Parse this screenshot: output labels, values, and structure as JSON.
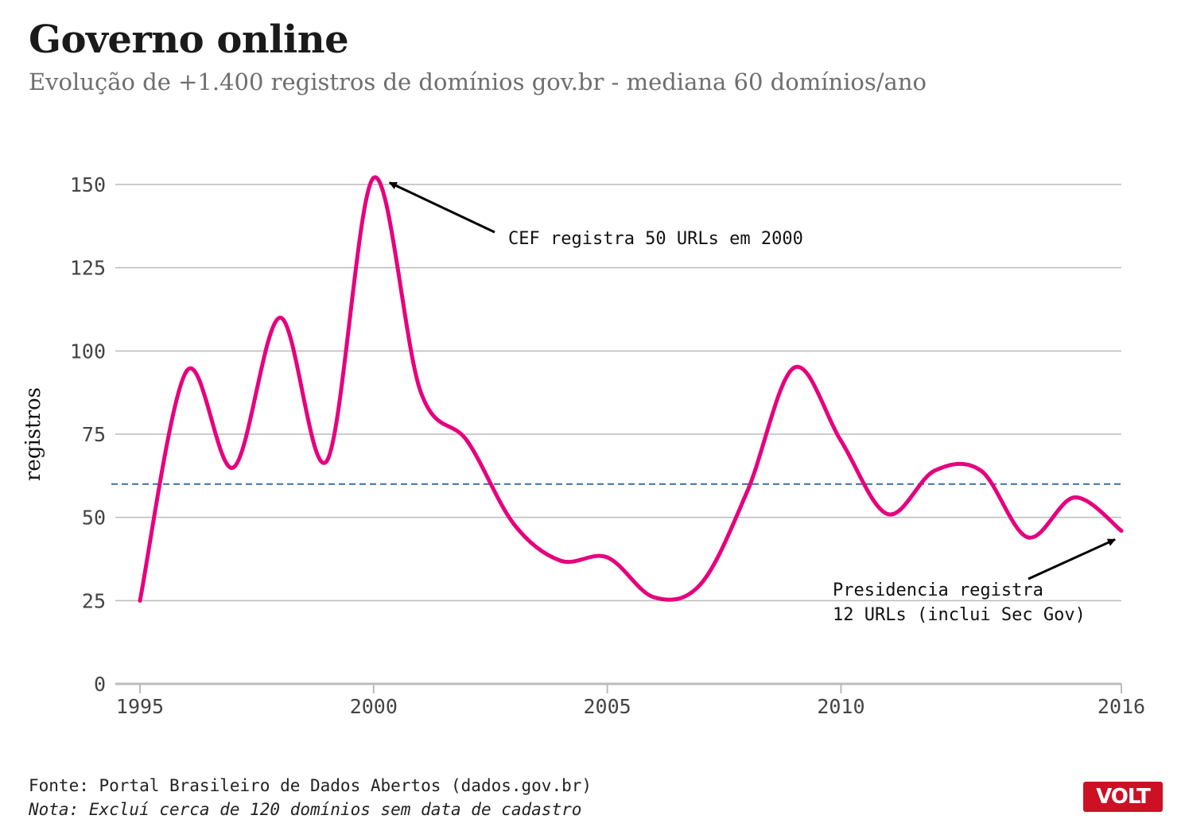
{
  "title": "Governo online",
  "subtitle": "Evolução de +1.400 registros de domínios gov.br - mediana 60 domínios/ano",
  "source": "Fonte: Portal Brasileiro de Dados Abertos (dados.gov.br)",
  "note": "Nota: Excluí cerca de 120 domínios sem data de cadastro",
  "logo_text": "VOLT",
  "colors": {
    "line": "#e6007e",
    "median": "#3a6ea5",
    "grid": "#bbbbbb",
    "axis": "#bbbbbb",
    "text": "#222222",
    "logo": "#cc1124"
  },
  "chart_data": {
    "type": "line",
    "title": "Governo online",
    "subtitle": "Evolução de +1.400 registros de domínios gov.br - mediana 60 domínios/ano",
    "xlabel": "",
    "ylabel": "registros",
    "xlim": [
      1995,
      2016
    ],
    "ylim": [
      0,
      150
    ],
    "xticks": [
      1995,
      2000,
      2005,
      2010,
      2016
    ],
    "yticks": [
      0,
      25,
      50,
      75,
      100,
      125,
      150
    ],
    "grid": true,
    "x": [
      1995,
      1996,
      1997,
      1998,
      1999,
      2000,
      2001,
      2002,
      2003,
      2004,
      2005,
      2006,
      2007,
      2008,
      2009,
      2010,
      2011,
      2012,
      2013,
      2014,
      2015,
      2016
    ],
    "series": [
      {
        "values": [
          25,
          94,
          65,
          110,
          67,
          152,
          88,
          73,
          48,
          37,
          38,
          26,
          30,
          58,
          95,
          73,
          51,
          64,
          64,
          44,
          56,
          46
        ]
      }
    ],
    "median": 60,
    "annotations": [
      {
        "lines": [
          "CEF registra 50 URLs em 2000"
        ],
        "x": 2000,
        "y": 152
      },
      {
        "lines": [
          "Presidencia registra",
          "12 URLs (inclui Sec Gov)"
        ],
        "x": 2016,
        "y": 46
      }
    ]
  }
}
